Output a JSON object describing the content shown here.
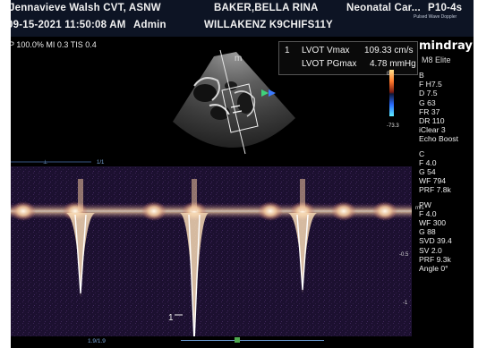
{
  "header": {
    "operator": "Jennavieve Walsh CVT, ASNW",
    "patient_name": "BAKER,BELLA RINA",
    "department": "Neonatal Car...",
    "probe": "P10-4s",
    "datetime": "09-15-2021 11:50:08 AM",
    "user": "Admin",
    "patient_id": "WILLAKENZ K9CHIFS11Y",
    "small_label": "Pulsed Wave Doppler"
  },
  "status": {
    "power": "P 100.0%",
    "mi": "MI 0.3",
    "tis": "TIS 0.4"
  },
  "brand": {
    "name": "mindray",
    "model": "M8 Elite"
  },
  "measurement": {
    "index": "1",
    "rows": [
      {
        "label": "LVOT Vmax",
        "value": "109.33 cm/s"
      },
      {
        "label": "LVOT PGmax",
        "value": "4.78 mmHg"
      }
    ]
  },
  "image_labels": {
    "marker": "m",
    "depth_top": "0",
    "depth_bottom": "-73.3",
    "scale_ratio": "1/1",
    "bottom_ratio": "1.9/1.9",
    "cursor_label": "1"
  },
  "params": {
    "b_title": "B",
    "b": [
      "F H7.5",
      "D 7.5",
      "G 63",
      "FR 37",
      "DR 110",
      "iClear 3",
      "Echo Boost"
    ],
    "c_title": "C",
    "c": [
      "F 4.0",
      "G 54",
      "WF 794",
      "PRF 7.8k"
    ],
    "pw_title": "PW",
    "pw": [
      "F 4.0",
      "WF 300",
      "G 88",
      "SVD 39.4",
      "SV 2.0",
      "PRF 9.3k",
      "Angle 0°"
    ]
  },
  "doppler_scale": {
    "unit": "m/s",
    "ticks": [
      "",
      "-0.5",
      "-1"
    ]
  },
  "colors": {
    "header_bg": "#0d1424",
    "spectral_bg": "#1c1030",
    "spectral_signal": "#fff2d8",
    "baseline": "#c9d6e8"
  }
}
